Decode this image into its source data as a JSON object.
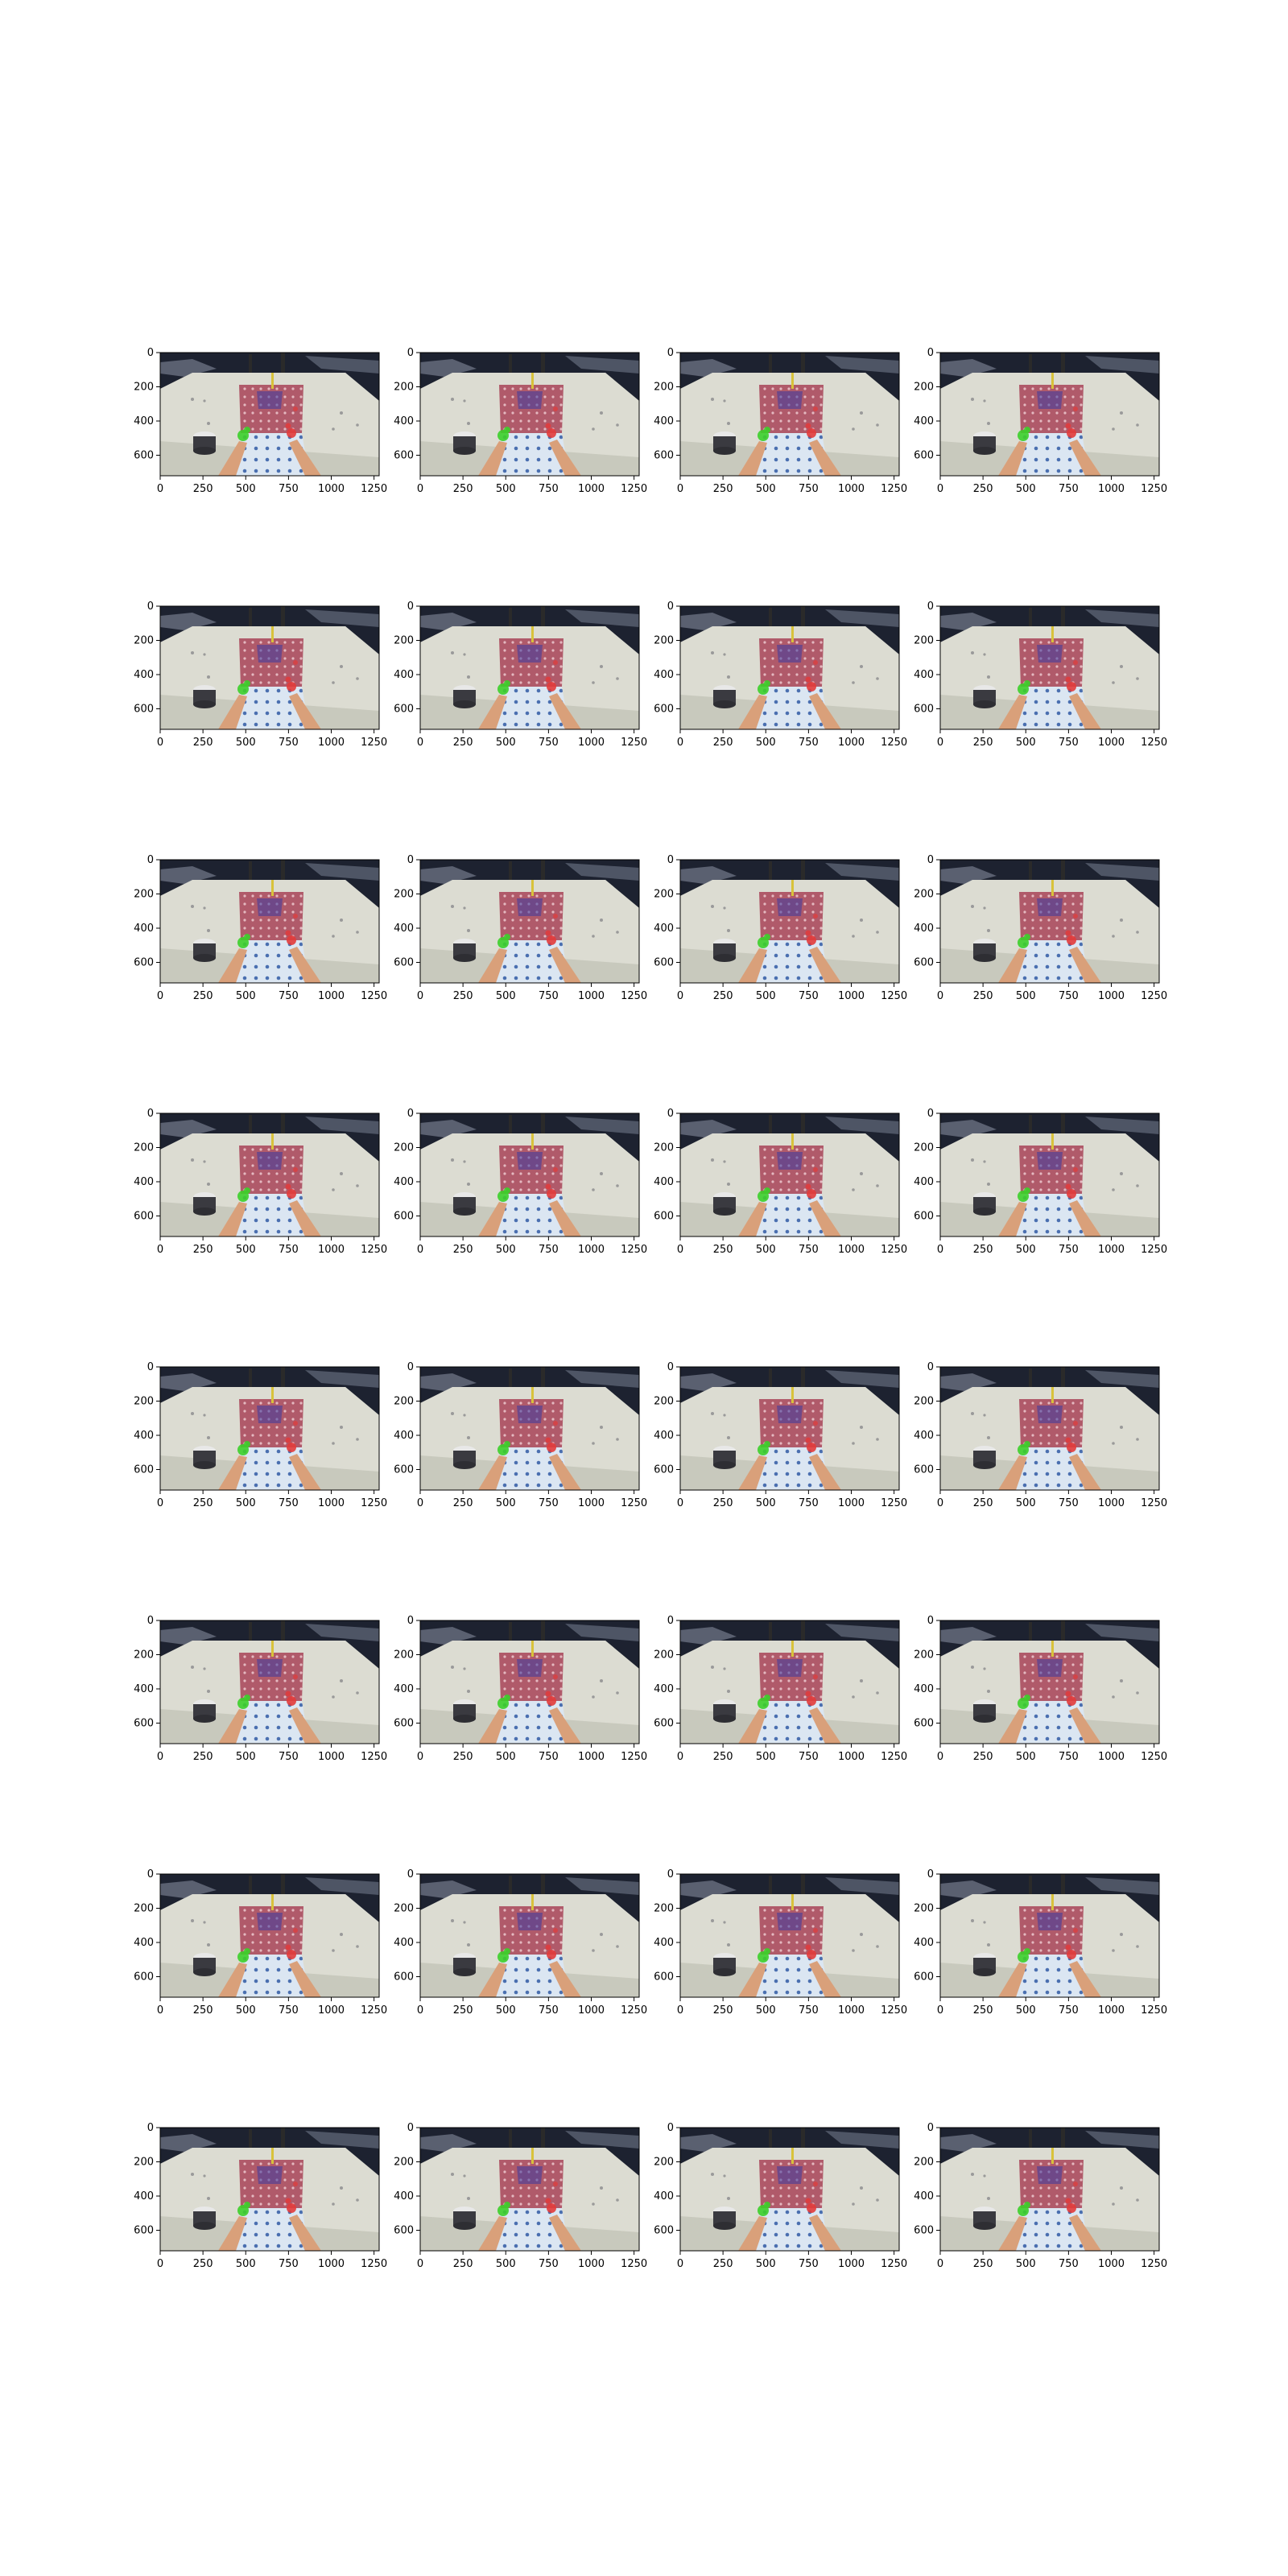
{
  "figure": {
    "rows": 8,
    "cols": 4,
    "panel_description": "egocentric tabletop frame: two hands with green and red keypoint overlays",
    "x_ticks": [
      "0",
      "250",
      "500",
      "750",
      "1000",
      "1250"
    ],
    "y_ticks": [
      "0",
      "200",
      "400",
      "600"
    ],
    "x_tick_values": [
      0,
      250,
      500,
      750,
      1000,
      1250
    ],
    "y_tick_values": [
      0,
      200,
      400,
      600
    ],
    "image_width_units": 1280,
    "image_height_units": 720,
    "colors": {
      "background": "#ffffff",
      "table": "#dcdcd2",
      "tablecloth": "#b05a6a",
      "tablecloth_pattern": "#3a3aa0",
      "mat": "#dbe6f2",
      "mat_pattern": "#4a6fb0",
      "skin": "#d9a07a",
      "left_hand_overlay": "#3ccf2a",
      "right_hand_overlay": "#e23b3b",
      "dark_background": "#1d2230",
      "cup": "#3a3a40"
    }
  }
}
